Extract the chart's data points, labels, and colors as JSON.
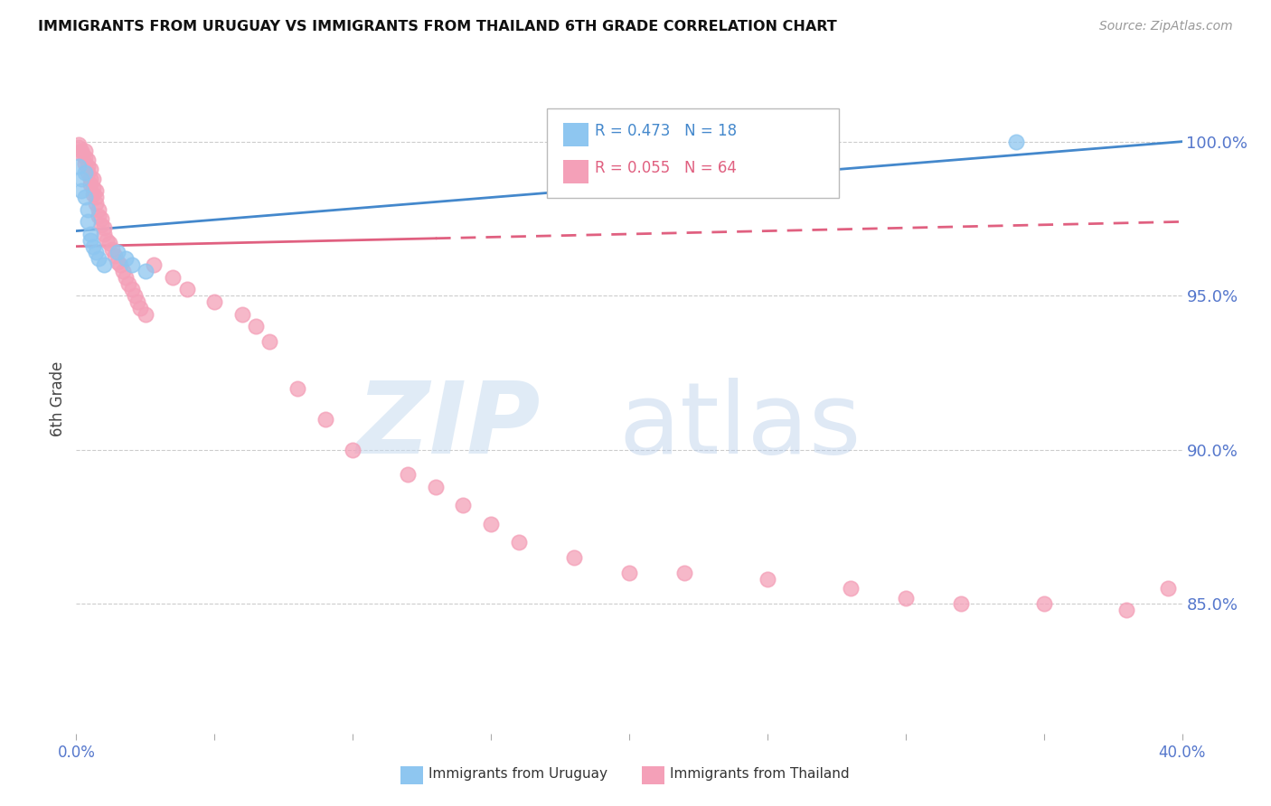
{
  "title": "IMMIGRANTS FROM URUGUAY VS IMMIGRANTS FROM THAILAND 6TH GRADE CORRELATION CHART",
  "source": "Source: ZipAtlas.com",
  "ylabel": "6th Grade",
  "ylabel_values": [
    1.0,
    0.95,
    0.9,
    0.85
  ],
  "xmin": 0.0,
  "xmax": 0.4,
  "ymin": 0.808,
  "ymax": 1.025,
  "color_uruguay": "#8EC6F0",
  "color_thailand": "#F4A0B8",
  "color_trendline_uruguay": "#4488CC",
  "color_trendline_thailand": "#E06080",
  "background_color": "#ffffff",
  "grid_color": "#cccccc",
  "axis_label_color": "#5577CC",
  "uruguay_x": [
    0.001,
    0.002,
    0.002,
    0.003,
    0.003,
    0.004,
    0.004,
    0.005,
    0.005,
    0.006,
    0.007,
    0.008,
    0.01,
    0.015,
    0.018,
    0.02,
    0.025,
    0.34
  ],
  "uruguay_y": [
    0.992,
    0.988,
    0.984,
    0.99,
    0.982,
    0.978,
    0.974,
    0.97,
    0.968,
    0.966,
    0.964,
    0.962,
    0.96,
    0.964,
    0.962,
    0.96,
    0.958,
    1.0
  ],
  "thailand_x": [
    0.001,
    0.001,
    0.002,
    0.002,
    0.003,
    0.003,
    0.003,
    0.004,
    0.004,
    0.004,
    0.005,
    0.005,
    0.005,
    0.006,
    0.006,
    0.006,
    0.007,
    0.007,
    0.007,
    0.008,
    0.008,
    0.009,
    0.009,
    0.01,
    0.01,
    0.011,
    0.012,
    0.013,
    0.014,
    0.015,
    0.016,
    0.017,
    0.018,
    0.019,
    0.02,
    0.021,
    0.022,
    0.023,
    0.025,
    0.028,
    0.035,
    0.04,
    0.05,
    0.06,
    0.065,
    0.07,
    0.08,
    0.09,
    0.1,
    0.12,
    0.13,
    0.14,
    0.15,
    0.16,
    0.18,
    0.2,
    0.22,
    0.25,
    0.28,
    0.3,
    0.32,
    0.35,
    0.38,
    0.395
  ],
  "thailand_y": [
    0.999,
    0.998,
    0.997,
    0.996,
    0.997,
    0.995,
    0.993,
    0.994,
    0.992,
    0.99,
    0.991,
    0.988,
    0.986,
    0.988,
    0.985,
    0.983,
    0.984,
    0.982,
    0.98,
    0.978,
    0.976,
    0.975,
    0.973,
    0.972,
    0.97,
    0.968,
    0.967,
    0.965,
    0.963,
    0.961,
    0.96,
    0.958,
    0.956,
    0.954,
    0.952,
    0.95,
    0.948,
    0.946,
    0.944,
    0.96,
    0.956,
    0.952,
    0.948,
    0.944,
    0.94,
    0.935,
    0.92,
    0.91,
    0.9,
    0.892,
    0.888,
    0.882,
    0.876,
    0.87,
    0.865,
    0.86,
    0.86,
    0.858,
    0.855,
    0.852,
    0.85,
    0.85,
    0.848,
    0.855
  ]
}
